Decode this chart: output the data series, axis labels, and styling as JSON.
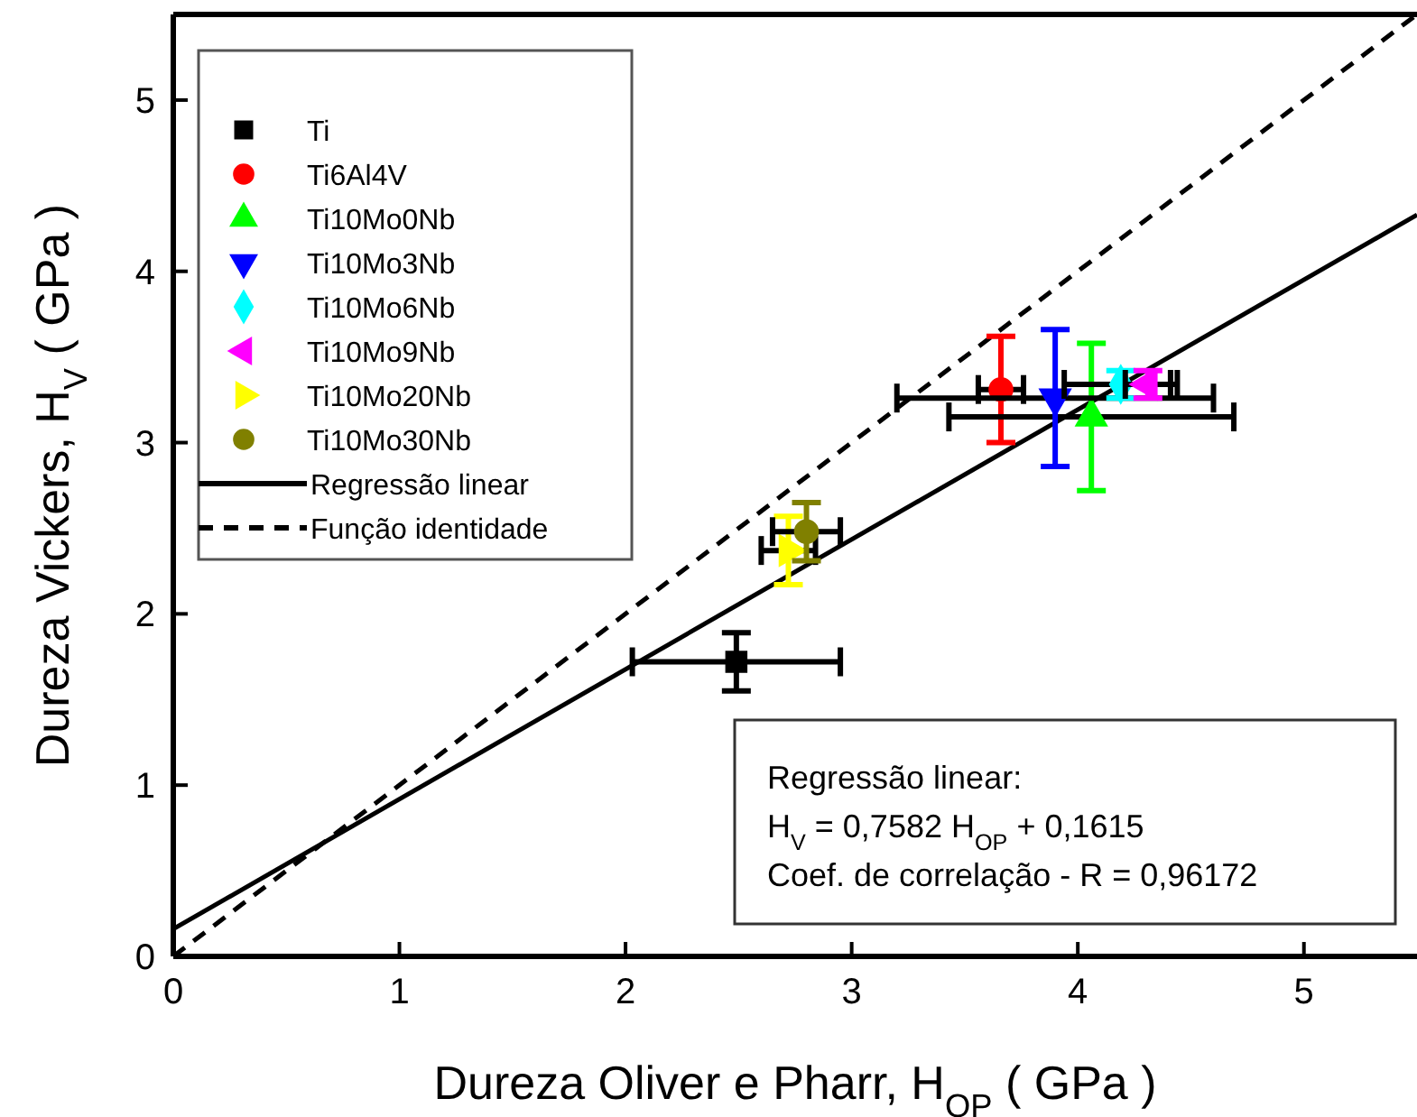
{
  "chart_data": {
    "type": "scatter",
    "xlabel": "Dureza Oliver e Pharr, H$_{OP}$ ( GPa )",
    "ylabel": "Dureza Vickers, H$_{V}$ ( GPa )",
    "xlim": [
      0,
      5.5
    ],
    "ylim": [
      0,
      5.5
    ],
    "xticks": [
      0,
      1,
      2,
      3,
      4,
      5
    ],
    "yticks": [
      0,
      1,
      2,
      3,
      4,
      5
    ],
    "grid": false,
    "legend": "top left",
    "series": [
      {
        "name": "Ti",
        "color": "#000000",
        "marker": "square",
        "x": [
          2.49
        ],
        "values": [
          1.72
        ],
        "errors": [
          0.17
        ],
        "xerrors": [
          0.46
        ]
      },
      {
        "name": "Ti6Al4V",
        "color": "#ff0000",
        "marker": "circle",
        "x": [
          3.66
        ],
        "values": [
          3.31
        ],
        "errors": [
          0.31
        ],
        "xerrors": [
          0.1
        ]
      },
      {
        "name": "Ti10Mo0Nb",
        "color": "#00ff00",
        "marker": "triangle",
        "x": [
          4.06
        ],
        "values": [
          3.15
        ],
        "errors": [
          0.43
        ],
        "xerrors": [
          0.63
        ]
      },
      {
        "name": "Ti10Mo3Nb",
        "color": "#0000ff",
        "marker": "triangle-down",
        "x": [
          3.9
        ],
        "values": [
          3.26
        ],
        "errors": [
          0.4
        ],
        "xerrors": [
          0.7
        ]
      },
      {
        "name": "Ti10Mo6Nb",
        "color": "#00ffff",
        "marker": "diamond",
        "x": [
          4.19
        ],
        "values": [
          3.34
        ],
        "errors": [
          0.08
        ],
        "xerrors": [
          0.25
        ]
      },
      {
        "name": "Ti10Mo9Nb",
        "color": "#ff00ff",
        "marker": "triangle-left",
        "x": [
          4.31
        ],
        "values": [
          3.34
        ],
        "errors": [
          0.08
        ],
        "xerrors": [
          0.1
        ]
      },
      {
        "name": "Ti10Mo20Nb",
        "color": "#ffff00",
        "marker": "triangle-right",
        "x": [
          2.72
        ],
        "values": [
          2.37
        ],
        "errors": [
          0.2
        ],
        "xerrors": [
          0.12
        ]
      },
      {
        "name": "Ti10Mo30Nb",
        "color": "#808000",
        "marker": "circle",
        "x": [
          2.8
        ],
        "values": [
          2.48
        ],
        "errors": [
          0.17
        ],
        "xerrors": [
          0.15
        ]
      },
      {
        "name": "Regressão linear",
        "type": "line",
        "color": "#000000",
        "line_style": "solid",
        "x": [
          0,
          5.5
        ],
        "values": [
          0.16,
          4.33
        ]
      },
      {
        "name": "Função identidade",
        "type": "line",
        "color": "#000000",
        "line_style": "dashed",
        "x": [
          0,
          5.5
        ],
        "values": [
          0,
          5.5
        ]
      }
    ],
    "annotations": [
      "Regressão linear:",
      "H$_{V}$ = 0,7582 H$_{OP}$ + 0,1615",
      "Coef. de correlação - R = 0,96172"
    ]
  }
}
